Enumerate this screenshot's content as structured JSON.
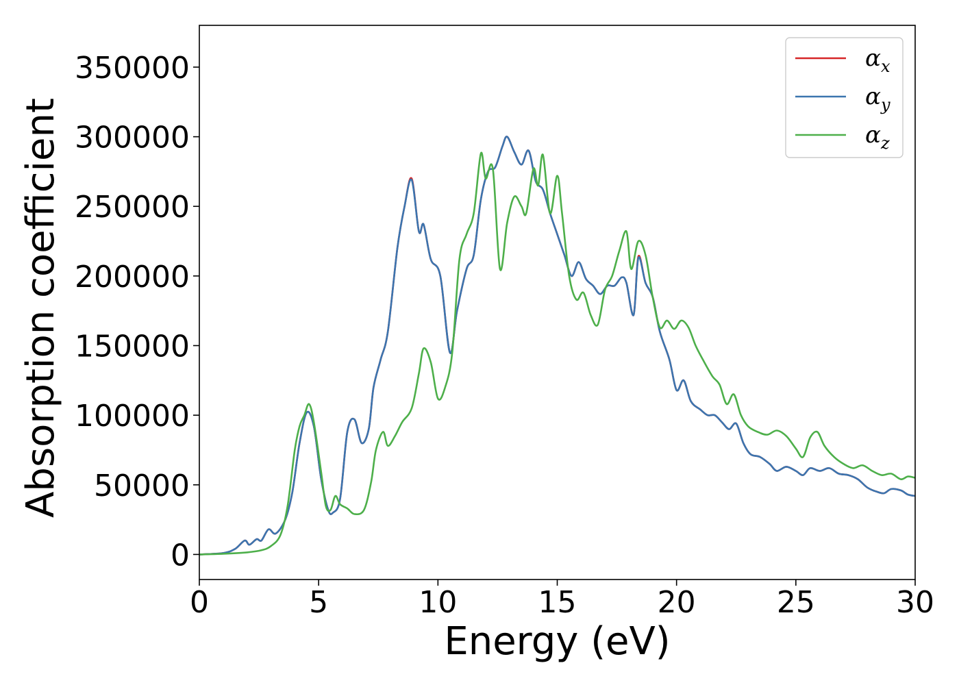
{
  "chart_data": {
    "type": "line",
    "title": "",
    "xlabel": "Energy (eV)",
    "ylabel": "Absorption coefficient",
    "xlim": [
      0,
      30
    ],
    "ylim": [
      -18000,
      380000
    ],
    "xticks": [
      0,
      5,
      10,
      15,
      20,
      25,
      30
    ],
    "yticks": [
      0,
      50000,
      100000,
      150000,
      200000,
      250000,
      300000,
      350000
    ],
    "grid": false,
    "legend_position": "top-right",
    "series": [
      {
        "name": "α",
        "subscript": "x",
        "color": "#d62728",
        "points": [
          [
            0,
            0
          ],
          [
            1,
            1000
          ],
          [
            1.5,
            4000
          ],
          [
            1.9,
            10000
          ],
          [
            2.1,
            7000
          ],
          [
            2.4,
            11000
          ],
          [
            2.6,
            10000
          ],
          [
            2.9,
            18000
          ],
          [
            3.2,
            15000
          ],
          [
            3.6,
            25000
          ],
          [
            3.9,
            45000
          ],
          [
            4.2,
            80000
          ],
          [
            4.5,
            102000
          ],
          [
            4.8,
            92000
          ],
          [
            5.1,
            55000
          ],
          [
            5.4,
            32000
          ],
          [
            5.6,
            30000
          ],
          [
            5.9,
            40000
          ],
          [
            6.2,
            88000
          ],
          [
            6.5,
            97000
          ],
          [
            6.8,
            80000
          ],
          [
            7.1,
            90000
          ],
          [
            7.3,
            120000
          ],
          [
            7.6,
            140000
          ],
          [
            7.9,
            160000
          ],
          [
            8.3,
            220000
          ],
          [
            8.6,
            250000
          ],
          [
            8.9,
            270000
          ],
          [
            9.2,
            232000
          ],
          [
            9.4,
            237000
          ],
          [
            9.7,
            212000
          ],
          [
            10.1,
            200000
          ],
          [
            10.5,
            145000
          ],
          [
            10.8,
            175000
          ],
          [
            11.2,
            205000
          ],
          [
            11.5,
            215000
          ],
          [
            11.8,
            255000
          ],
          [
            12.1,
            275000
          ],
          [
            12.4,
            278000
          ],
          [
            12.7,
            293000
          ],
          [
            12.9,
            300000
          ],
          [
            13.2,
            289000
          ],
          [
            13.5,
            280000
          ],
          [
            13.8,
            290000
          ],
          [
            14.1,
            268000
          ],
          [
            14.4,
            262000
          ],
          [
            14.7,
            245000
          ],
          [
            15.0,
            230000
          ],
          [
            15.3,
            215000
          ],
          [
            15.6,
            200000
          ],
          [
            15.9,
            210000
          ],
          [
            16.2,
            198000
          ],
          [
            16.5,
            193000
          ],
          [
            16.8,
            187000
          ],
          [
            17.1,
            193000
          ],
          [
            17.4,
            193000
          ],
          [
            17.7,
            199000
          ],
          [
            17.9,
            195000
          ],
          [
            18.2,
            172000
          ],
          [
            18.4,
            214000
          ],
          [
            18.7,
            195000
          ],
          [
            19.0,
            185000
          ],
          [
            19.3,
            160000
          ],
          [
            19.7,
            140000
          ],
          [
            20.0,
            118000
          ],
          [
            20.3,
            125000
          ],
          [
            20.6,
            110000
          ],
          [
            21.0,
            104000
          ],
          [
            21.3,
            100000
          ],
          [
            21.6,
            100000
          ],
          [
            21.9,
            95000
          ],
          [
            22.2,
            90000
          ],
          [
            22.5,
            94000
          ],
          [
            22.8,
            80000
          ],
          [
            23.1,
            72000
          ],
          [
            23.5,
            70000
          ],
          [
            23.9,
            65000
          ],
          [
            24.2,
            60000
          ],
          [
            24.6,
            63000
          ],
          [
            25.0,
            60000
          ],
          [
            25.3,
            57000
          ],
          [
            25.6,
            62000
          ],
          [
            26.0,
            60000
          ],
          [
            26.4,
            62000
          ],
          [
            26.8,
            58000
          ],
          [
            27.2,
            57000
          ],
          [
            27.6,
            54000
          ],
          [
            28.0,
            48000
          ],
          [
            28.4,
            45000
          ],
          [
            28.7,
            44000
          ],
          [
            29.0,
            47000
          ],
          [
            29.4,
            46000
          ],
          [
            29.7,
            43000
          ],
          [
            30.0,
            42000
          ]
        ]
      },
      {
        "name": "α",
        "subscript": "y",
        "color": "#3b75af",
        "points": [
          [
            0,
            0
          ],
          [
            1,
            1000
          ],
          [
            1.5,
            4000
          ],
          [
            1.9,
            10000
          ],
          [
            2.1,
            7000
          ],
          [
            2.4,
            11000
          ],
          [
            2.6,
            10000
          ],
          [
            2.9,
            18000
          ],
          [
            3.2,
            15000
          ],
          [
            3.6,
            25000
          ],
          [
            3.9,
            45000
          ],
          [
            4.2,
            80000
          ],
          [
            4.5,
            102000
          ],
          [
            4.8,
            92000
          ],
          [
            5.1,
            55000
          ],
          [
            5.4,
            32000
          ],
          [
            5.6,
            30000
          ],
          [
            5.9,
            40000
          ],
          [
            6.2,
            88000
          ],
          [
            6.5,
            97000
          ],
          [
            6.8,
            80000
          ],
          [
            7.1,
            90000
          ],
          [
            7.3,
            120000
          ],
          [
            7.6,
            140000
          ],
          [
            7.9,
            160000
          ],
          [
            8.3,
            220000
          ],
          [
            8.6,
            250000
          ],
          [
            8.9,
            269000
          ],
          [
            9.2,
            232000
          ],
          [
            9.4,
            237000
          ],
          [
            9.7,
            212000
          ],
          [
            10.1,
            200000
          ],
          [
            10.5,
            145000
          ],
          [
            10.8,
            175000
          ],
          [
            11.2,
            205000
          ],
          [
            11.5,
            215000
          ],
          [
            11.8,
            255000
          ],
          [
            12.1,
            275000
          ],
          [
            12.4,
            278000
          ],
          [
            12.7,
            293000
          ],
          [
            12.9,
            300000
          ],
          [
            13.2,
            289000
          ],
          [
            13.5,
            280000
          ],
          [
            13.8,
            290000
          ],
          [
            14.1,
            268000
          ],
          [
            14.4,
            262000
          ],
          [
            14.7,
            245000
          ],
          [
            15.0,
            230000
          ],
          [
            15.3,
            215000
          ],
          [
            15.6,
            200000
          ],
          [
            15.9,
            210000
          ],
          [
            16.2,
            198000
          ],
          [
            16.5,
            193000
          ],
          [
            16.8,
            187000
          ],
          [
            17.1,
            193000
          ],
          [
            17.4,
            193000
          ],
          [
            17.7,
            199000
          ],
          [
            17.9,
            195000
          ],
          [
            18.2,
            172000
          ],
          [
            18.4,
            213000
          ],
          [
            18.7,
            195000
          ],
          [
            19.0,
            185000
          ],
          [
            19.3,
            160000
          ],
          [
            19.7,
            140000
          ],
          [
            20.0,
            118000
          ],
          [
            20.3,
            125000
          ],
          [
            20.6,
            110000
          ],
          [
            21.0,
            104000
          ],
          [
            21.3,
            100000
          ],
          [
            21.6,
            100000
          ],
          [
            21.9,
            95000
          ],
          [
            22.2,
            90000
          ],
          [
            22.5,
            94000
          ],
          [
            22.8,
            80000
          ],
          [
            23.1,
            72000
          ],
          [
            23.5,
            70000
          ],
          [
            23.9,
            65000
          ],
          [
            24.2,
            60000
          ],
          [
            24.6,
            63000
          ],
          [
            25.0,
            60000
          ],
          [
            25.3,
            57000
          ],
          [
            25.6,
            62000
          ],
          [
            26.0,
            60000
          ],
          [
            26.4,
            62000
          ],
          [
            26.8,
            58000
          ],
          [
            27.2,
            57000
          ],
          [
            27.6,
            54000
          ],
          [
            28.0,
            48000
          ],
          [
            28.4,
            45000
          ],
          [
            28.7,
            44000
          ],
          [
            29.0,
            47000
          ],
          [
            29.4,
            46000
          ],
          [
            29.7,
            43000
          ],
          [
            30.0,
            42000
          ]
        ]
      },
      {
        "name": "α",
        "subscript": "z",
        "color": "#4daf4a",
        "points": [
          [
            0,
            0
          ],
          [
            1,
            500
          ],
          [
            2,
            1500
          ],
          [
            2.6,
            3000
          ],
          [
            3.0,
            6000
          ],
          [
            3.4,
            14000
          ],
          [
            3.7,
            35000
          ],
          [
            4.0,
            75000
          ],
          [
            4.2,
            92000
          ],
          [
            4.4,
            100000
          ],
          [
            4.6,
            108000
          ],
          [
            4.8,
            95000
          ],
          [
            5.1,
            60000
          ],
          [
            5.3,
            35000
          ],
          [
            5.5,
            32000
          ],
          [
            5.7,
            42000
          ],
          [
            5.9,
            36000
          ],
          [
            6.2,
            33000
          ],
          [
            6.5,
            29000
          ],
          [
            6.9,
            32000
          ],
          [
            7.2,
            52000
          ],
          [
            7.4,
            75000
          ],
          [
            7.7,
            88000
          ],
          [
            7.9,
            78000
          ],
          [
            8.2,
            85000
          ],
          [
            8.5,
            95000
          ],
          [
            8.9,
            105000
          ],
          [
            9.2,
            130000
          ],
          [
            9.4,
            148000
          ],
          [
            9.7,
            138000
          ],
          [
            10.0,
            112000
          ],
          [
            10.3,
            120000
          ],
          [
            10.6,
            145000
          ],
          [
            10.9,
            212000
          ],
          [
            11.2,
            230000
          ],
          [
            11.5,
            245000
          ],
          [
            11.8,
            288000
          ],
          [
            12.0,
            270000
          ],
          [
            12.3,
            277000
          ],
          [
            12.6,
            205000
          ],
          [
            12.9,
            238000
          ],
          [
            13.2,
            257000
          ],
          [
            13.5,
            250000
          ],
          [
            13.7,
            245000
          ],
          [
            14.0,
            277000
          ],
          [
            14.2,
            265000
          ],
          [
            14.4,
            287000
          ],
          [
            14.7,
            245000
          ],
          [
            15.0,
            272000
          ],
          [
            15.2,
            245000
          ],
          [
            15.5,
            200000
          ],
          [
            15.8,
            183000
          ],
          [
            16.1,
            188000
          ],
          [
            16.4,
            172000
          ],
          [
            16.7,
            165000
          ],
          [
            17.0,
            190000
          ],
          [
            17.3,
            200000
          ],
          [
            17.6,
            218000
          ],
          [
            17.9,
            232000
          ],
          [
            18.1,
            205000
          ],
          [
            18.4,
            225000
          ],
          [
            18.7,
            215000
          ],
          [
            19.0,
            185000
          ],
          [
            19.3,
            163000
          ],
          [
            19.6,
            168000
          ],
          [
            19.9,
            162000
          ],
          [
            20.2,
            168000
          ],
          [
            20.5,
            163000
          ],
          [
            20.8,
            150000
          ],
          [
            21.1,
            140000
          ],
          [
            21.5,
            128000
          ],
          [
            21.8,
            122000
          ],
          [
            22.1,
            108000
          ],
          [
            22.4,
            115000
          ],
          [
            22.7,
            100000
          ],
          [
            23.0,
            92000
          ],
          [
            23.4,
            88000
          ],
          [
            23.8,
            86000
          ],
          [
            24.2,
            89000
          ],
          [
            24.6,
            85000
          ],
          [
            25.0,
            76000
          ],
          [
            25.3,
            70000
          ],
          [
            25.6,
            84000
          ],
          [
            25.9,
            88000
          ],
          [
            26.2,
            78000
          ],
          [
            26.6,
            70000
          ],
          [
            27.0,
            65000
          ],
          [
            27.4,
            62000
          ],
          [
            27.8,
            64000
          ],
          [
            28.2,
            60000
          ],
          [
            28.6,
            57000
          ],
          [
            29.0,
            58000
          ],
          [
            29.4,
            54000
          ],
          [
            29.7,
            56000
          ],
          [
            30.0,
            55000
          ]
        ]
      }
    ]
  }
}
